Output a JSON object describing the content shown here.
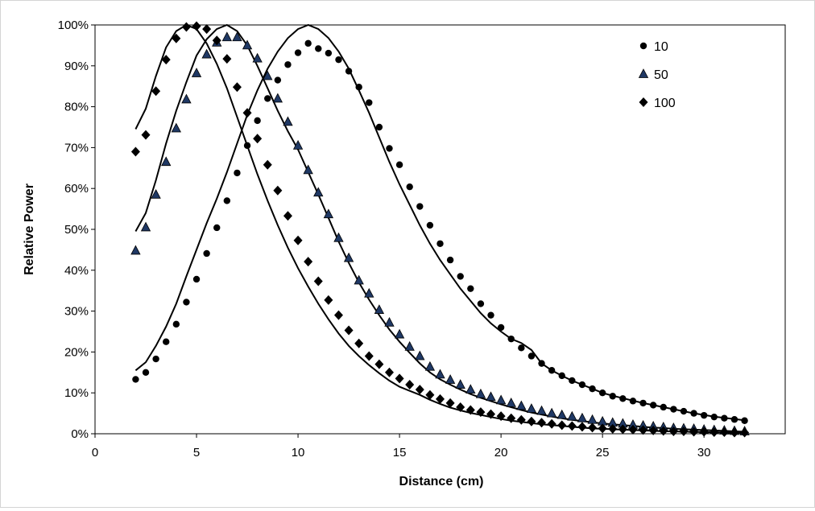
{
  "chart_data": {
    "type": "scatter",
    "title": "",
    "xlabel": "Distance  (cm)",
    "ylabel": "Relative Power",
    "xlim": [
      0,
      34
    ],
    "ylim": [
      0,
      1
    ],
    "x_ticks": [
      0,
      5,
      10,
      15,
      20,
      25,
      30
    ],
    "y_ticks": [
      0,
      0.1,
      0.2,
      0.3,
      0.4,
      0.5,
      0.6,
      0.7,
      0.8,
      0.9,
      1.0
    ],
    "x_tick_labels": [
      "0",
      "5",
      "10",
      "15",
      "20",
      "25",
      "30"
    ],
    "y_tick_labels": [
      "0%",
      "10%",
      "20%",
      "30%",
      "40%",
      "50%",
      "60%",
      "70%",
      "80%",
      "90%",
      "100%"
    ],
    "grid": false,
    "legend_position": "top-right",
    "series": [
      {
        "name": "10",
        "marker": "circle",
        "color": "#000000",
        "x": [
          2,
          2.5,
          3,
          3.5,
          4,
          4.5,
          5,
          5.5,
          6,
          6.5,
          7,
          7.5,
          8,
          8.5,
          9,
          9.5,
          10,
          10.5,
          11,
          11.5,
          12,
          12.5,
          13,
          13.5,
          14,
          14.5,
          15,
          15.5,
          16,
          16.5,
          17,
          17.5,
          18,
          18.5,
          19,
          19.5,
          20,
          20.5,
          21,
          21.5,
          22,
          22.5,
          23,
          23.5,
          24,
          24.5,
          25,
          25.5,
          26,
          26.5,
          27,
          27.5,
          28,
          28.5,
          29,
          29.5,
          30,
          30.5,
          31,
          31.5,
          32
        ],
        "y": [
          0.133,
          0.15,
          0.183,
          0.225,
          0.268,
          0.322,
          0.378,
          0.441,
          0.504,
          0.57,
          0.638,
          0.705,
          0.766,
          0.82,
          0.865,
          0.903,
          0.932,
          0.955,
          0.942,
          0.931,
          0.915,
          0.887,
          0.848,
          0.81,
          0.75,
          0.698,
          0.658,
          0.604,
          0.556,
          0.51,
          0.465,
          0.425,
          0.385,
          0.355,
          0.318,
          0.29,
          0.26,
          0.232,
          0.21,
          0.19,
          0.172,
          0.155,
          0.142,
          0.13,
          0.12,
          0.11,
          0.1,
          0.092,
          0.086,
          0.08,
          0.075,
          0.07,
          0.065,
          0.06,
          0.055,
          0.05,
          0.045,
          0.041,
          0.038,
          0.035,
          0.032
        ],
        "fit": [
          [
            2,
            0.155
          ],
          [
            2.5,
            0.175
          ],
          [
            3,
            0.215
          ],
          [
            3.5,
            0.262
          ],
          [
            4,
            0.318
          ],
          [
            4.5,
            0.385
          ],
          [
            5,
            0.45
          ],
          [
            5.5,
            0.515
          ],
          [
            6,
            0.575
          ],
          [
            6.5,
            0.64
          ],
          [
            7,
            0.71
          ],
          [
            7.5,
            0.78
          ],
          [
            8,
            0.84
          ],
          [
            8.5,
            0.893
          ],
          [
            9,
            0.935
          ],
          [
            9.5,
            0.968
          ],
          [
            10,
            0.99
          ],
          [
            10.5,
            1.0
          ],
          [
            11,
            0.99
          ],
          [
            11.5,
            0.968
          ],
          [
            12,
            0.935
          ],
          [
            12.5,
            0.893
          ],
          [
            13,
            0.84
          ],
          [
            13.5,
            0.785
          ],
          [
            14,
            0.725
          ],
          [
            14.5,
            0.665
          ],
          [
            15,
            0.61
          ],
          [
            15.5,
            0.56
          ],
          [
            16,
            0.51
          ],
          [
            16.5,
            0.465
          ],
          [
            17,
            0.425
          ],
          [
            17.5,
            0.39
          ],
          [
            18,
            0.355
          ],
          [
            18.5,
            0.325
          ],
          [
            19,
            0.295
          ],
          [
            19.5,
            0.27
          ],
          [
            20,
            0.25
          ],
          [
            20.5,
            0.232
          ],
          [
            21,
            0.222
          ],
          [
            21.5,
            0.205
          ],
          [
            22,
            0.172
          ],
          [
            22.5,
            0.155
          ],
          [
            23,
            0.142
          ],
          [
            23.5,
            0.13
          ],
          [
            24,
            0.12
          ],
          [
            24.5,
            0.11
          ],
          [
            25,
            0.1
          ],
          [
            25.5,
            0.093
          ],
          [
            26,
            0.087
          ],
          [
            26.5,
            0.081
          ],
          [
            27,
            0.075
          ],
          [
            27.5,
            0.07
          ],
          [
            28,
            0.065
          ],
          [
            28.5,
            0.06
          ],
          [
            29,
            0.055
          ],
          [
            29.5,
            0.05
          ],
          [
            30,
            0.046
          ],
          [
            30.5,
            0.042
          ],
          [
            31,
            0.039
          ],
          [
            31.5,
            0.036
          ],
          [
            32,
            0.033
          ]
        ]
      },
      {
        "name": "50",
        "marker": "triangle",
        "color": "#1f3864",
        "x": [
          2,
          2.5,
          3,
          3.5,
          4,
          4.5,
          5,
          5.5,
          6,
          6.5,
          7,
          7.5,
          8,
          8.5,
          9,
          9.5,
          10,
          10.5,
          11,
          11.5,
          12,
          12.5,
          13,
          13.5,
          14,
          14.5,
          15,
          15.5,
          16,
          16.5,
          17,
          17.5,
          18,
          18.5,
          19,
          19.5,
          20,
          20.5,
          21,
          21.5,
          22,
          22.5,
          23,
          23.5,
          24,
          24.5,
          25,
          25.5,
          26,
          26.5,
          27,
          27.5,
          28,
          28.5,
          29,
          29.5,
          30,
          30.5,
          31,
          31.5,
          32
        ],
        "y": [
          0.448,
          0.505,
          0.585,
          0.665,
          0.747,
          0.818,
          0.882,
          0.928,
          0.957,
          0.97,
          0.97,
          0.95,
          0.918,
          0.875,
          0.82,
          0.763,
          0.705,
          0.645,
          0.59,
          0.537,
          0.479,
          0.43,
          0.375,
          0.343,
          0.303,
          0.272,
          0.243,
          0.213,
          0.19,
          0.164,
          0.145,
          0.132,
          0.12,
          0.108,
          0.097,
          0.09,
          0.082,
          0.075,
          0.068,
          0.061,
          0.056,
          0.05,
          0.046,
          0.042,
          0.038,
          0.034,
          0.03,
          0.027,
          0.025,
          0.022,
          0.02,
          0.018,
          0.016,
          0.014,
          0.013,
          0.012,
          0.01,
          0.009,
          0.008,
          0.007,
          0.006
        ],
        "fit": [
          [
            2,
            0.495
          ],
          [
            2.5,
            0.54
          ],
          [
            3,
            0.62
          ],
          [
            3.5,
            0.71
          ],
          [
            4,
            0.79
          ],
          [
            4.5,
            0.86
          ],
          [
            5,
            0.925
          ],
          [
            5.5,
            0.965
          ],
          [
            6,
            0.99
          ],
          [
            6.5,
            1.0
          ],
          [
            7,
            0.985
          ],
          [
            7.5,
            0.95
          ],
          [
            8,
            0.9
          ],
          [
            8.5,
            0.845
          ],
          [
            9,
            0.79
          ],
          [
            9.5,
            0.74
          ],
          [
            10,
            0.695
          ],
          [
            10.5,
            0.64
          ],
          [
            11,
            0.585
          ],
          [
            11.5,
            0.528
          ],
          [
            12,
            0.47
          ],
          [
            12.5,
            0.418
          ],
          [
            13,
            0.37
          ],
          [
            13.5,
            0.328
          ],
          [
            14,
            0.29
          ],
          [
            14.5,
            0.255
          ],
          [
            15,
            0.225
          ],
          [
            15.5,
            0.198
          ],
          [
            16,
            0.172
          ],
          [
            16.5,
            0.15
          ],
          [
            17,
            0.133
          ],
          [
            17.5,
            0.12
          ],
          [
            18,
            0.108
          ],
          [
            18.5,
            0.097
          ],
          [
            19,
            0.088
          ],
          [
            19.5,
            0.08
          ],
          [
            20,
            0.072
          ],
          [
            20.5,
            0.065
          ],
          [
            21,
            0.058
          ],
          [
            21.5,
            0.052
          ],
          [
            22,
            0.047
          ],
          [
            22.5,
            0.042
          ],
          [
            23,
            0.038
          ],
          [
            23.5,
            0.034
          ],
          [
            24,
            0.031
          ],
          [
            24.5,
            0.028
          ],
          [
            25,
            0.025
          ],
          [
            25.5,
            0.023
          ],
          [
            26,
            0.021
          ],
          [
            26.5,
            0.019
          ],
          [
            27,
            0.017
          ],
          [
            27.5,
            0.015
          ],
          [
            28,
            0.014
          ],
          [
            28.5,
            0.012
          ],
          [
            29,
            0.011
          ],
          [
            29.5,
            0.01
          ],
          [
            30,
            0.009
          ],
          [
            30.5,
            0.008
          ],
          [
            31,
            0.007
          ],
          [
            31.5,
            0.006
          ],
          [
            32,
            0.005
          ]
        ]
      },
      {
        "name": "100",
        "marker": "diamond",
        "color": "#000000",
        "x": [
          2,
          2.5,
          3,
          3.5,
          4,
          4.5,
          5,
          5.5,
          6,
          6.5,
          7,
          7.5,
          8,
          8.5,
          9,
          9.5,
          10,
          10.5,
          11,
          11.5,
          12,
          12.5,
          13,
          13.5,
          14,
          14.5,
          15,
          15.5,
          16,
          16.5,
          17,
          17.5,
          18,
          18.5,
          19,
          19.5,
          20,
          20.5,
          21,
          21.5,
          22,
          22.5,
          23,
          23.5,
          24,
          24.5,
          25,
          25.5,
          26,
          26.5,
          27,
          27.5,
          28,
          28.5,
          29,
          29.5,
          30,
          30.5,
          31,
          31.5,
          32
        ],
        "y": [
          0.69,
          0.731,
          0.838,
          0.915,
          0.967,
          0.995,
          0.997,
          0.99,
          0.962,
          0.917,
          0.848,
          0.785,
          0.722,
          0.658,
          0.595,
          0.533,
          0.473,
          0.421,
          0.373,
          0.327,
          0.29,
          0.253,
          0.221,
          0.19,
          0.17,
          0.15,
          0.135,
          0.12,
          0.108,
          0.095,
          0.085,
          0.075,
          0.065,
          0.058,
          0.053,
          0.048,
          0.043,
          0.038,
          0.034,
          0.03,
          0.027,
          0.024,
          0.021,
          0.019,
          0.017,
          0.015,
          0.013,
          0.012,
          0.011,
          0.01,
          0.009,
          0.008,
          0.007,
          0.006,
          0.006,
          0.005,
          0.005,
          0.004,
          0.004,
          0.003,
          0.003
        ],
        "fit": [
          [
            2,
            0.745
          ],
          [
            2.5,
            0.795
          ],
          [
            3,
            0.875
          ],
          [
            3.5,
            0.945
          ],
          [
            4,
            0.985
          ],
          [
            4.5,
            1.0
          ],
          [
            5,
            0.99
          ],
          [
            5.5,
            0.955
          ],
          [
            6,
            0.905
          ],
          [
            6.5,
            0.845
          ],
          [
            7,
            0.775
          ],
          [
            7.5,
            0.705
          ],
          [
            8,
            0.635
          ],
          [
            8.5,
            0.57
          ],
          [
            9,
            0.51
          ],
          [
            9.5,
            0.455
          ],
          [
            10,
            0.405
          ],
          [
            10.5,
            0.36
          ],
          [
            11,
            0.318
          ],
          [
            11.5,
            0.28
          ],
          [
            12,
            0.245
          ],
          [
            12.5,
            0.215
          ],
          [
            13,
            0.19
          ],
          [
            13.5,
            0.168
          ],
          [
            14,
            0.148
          ],
          [
            14.5,
            0.13
          ],
          [
            15,
            0.115
          ],
          [
            15.5,
            0.105
          ],
          [
            16,
            0.095
          ],
          [
            16.5,
            0.083
          ],
          [
            17,
            0.073
          ],
          [
            17.5,
            0.064
          ],
          [
            18,
            0.057
          ],
          [
            18.5,
            0.051
          ],
          [
            19,
            0.046
          ],
          [
            19.5,
            0.041
          ],
          [
            20,
            0.036
          ],
          [
            20.5,
            0.032
          ],
          [
            21,
            0.029
          ],
          [
            21.5,
            0.026
          ],
          [
            22,
            0.023
          ],
          [
            22.5,
            0.021
          ],
          [
            23,
            0.019
          ],
          [
            23.5,
            0.017
          ],
          [
            24,
            0.015
          ],
          [
            24.5,
            0.013
          ],
          [
            25,
            0.012
          ],
          [
            25.5,
            0.011
          ],
          [
            26,
            0.01
          ],
          [
            26.5,
            0.009
          ],
          [
            27,
            0.008
          ],
          [
            27.5,
            0.007
          ],
          [
            28,
            0.006
          ],
          [
            28.5,
            0.006
          ],
          [
            29,
            0.005
          ],
          [
            29.5,
            0.005
          ],
          [
            30,
            0.004
          ],
          [
            30.5,
            0.004
          ],
          [
            31,
            0.003
          ],
          [
            31.5,
            0.003
          ],
          [
            32,
            0.003
          ]
        ]
      }
    ]
  }
}
